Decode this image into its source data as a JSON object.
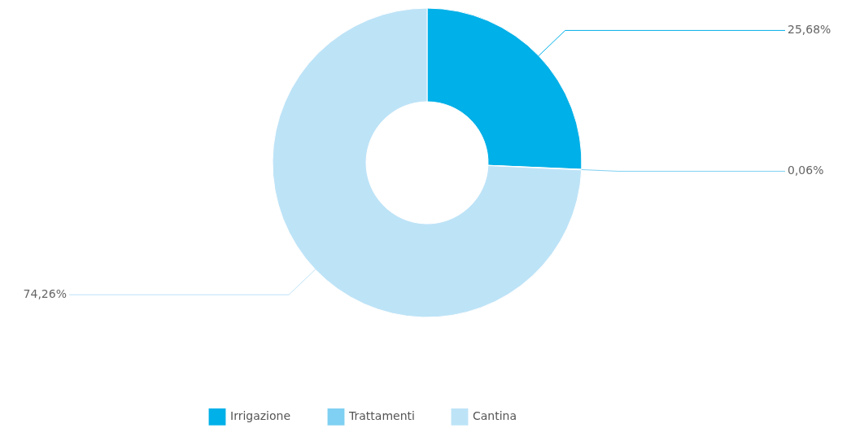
{
  "chart_data": {
    "type": "donut",
    "categories": [
      "Irrigazione",
      "Trattamenti",
      "Cantina"
    ],
    "values": [
      25.68,
      0.06,
      74.26
    ],
    "value_labels": [
      "25,68%",
      "0,06%",
      "74,26%"
    ],
    "colors": [
      "#00b0e8",
      "#7fd0f2",
      "#bde3f7"
    ],
    "legend": "bottom"
  }
}
